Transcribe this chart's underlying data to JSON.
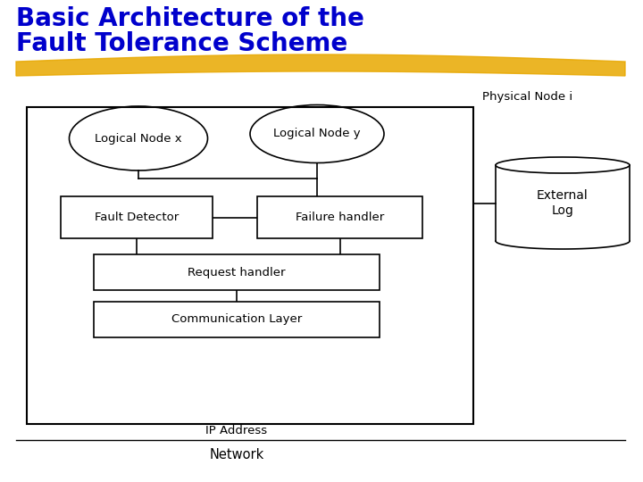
{
  "title_line1": "Basic Architecture of the",
  "title_line2": "Fault Tolerance Scheme",
  "title_color": "#0000CC",
  "title_fontsize": 20,
  "bg_color": "#FFFFFF",
  "highlight_color": "#E8A800",
  "physical_node_label": "Physical Node i",
  "logical_node_x_label": "Logical Node x",
  "logical_node_y_label": "Logical Node y",
  "fault_detector_label": "Fault Detector",
  "failure_handler_label": "Failure handler",
  "request_handler_label": "Request handler",
  "communication_layer_label": "Communication Layer",
  "ip_address_label": "IP Address",
  "network_label": "Network",
  "external_log_label": "External\nLog"
}
